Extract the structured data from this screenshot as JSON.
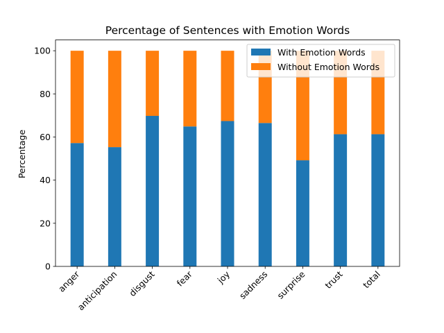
{
  "chart_data": {
    "type": "bar",
    "stacked": true,
    "title": "Percentage of Sentences with Emotion Words",
    "xlabel": "",
    "ylabel": "Percentage",
    "ylim": [
      0,
      105
    ],
    "yticks": [
      0,
      20,
      40,
      60,
      80,
      100
    ],
    "grid": false,
    "legend_position": "upper right",
    "categories": [
      "anger",
      "anticipation",
      "disgust",
      "fear",
      "joy",
      "sadness",
      "surprise",
      "trust",
      "total"
    ],
    "series": [
      {
        "name": "With Emotion Words",
        "color": "#1f77b4",
        "values": [
          57.2,
          55.3,
          69.8,
          64.9,
          67.4,
          66.5,
          49.2,
          61.3,
          61.3
        ]
      },
      {
        "name": "Without Emotion Words",
        "color": "#ff7f0e",
        "values": [
          42.8,
          44.7,
          30.2,
          35.1,
          32.6,
          33.5,
          50.8,
          38.7,
          38.7
        ]
      }
    ]
  }
}
